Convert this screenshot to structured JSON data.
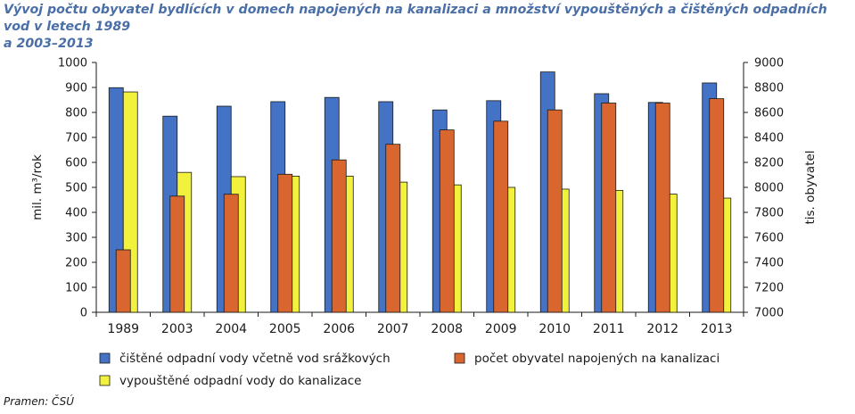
{
  "title_lines": [
    "Vývoj počtu obyvatel bydlících v domech napojených na kanalizaci a množství vypouštěných a čištěných odpadních vod v letech 1989",
    "a 2003–2013"
  ],
  "source": "Pramen: ČSÚ",
  "chart_data": {
    "type": "bar",
    "title": "Vývoj počtu obyvatel bydlících v domech napojených na kanalizaci a množství vypouštěných a čištěných odpadních vod v letech 1989 a 2003–2013",
    "categories": [
      "1989",
      "2003",
      "2004",
      "2005",
      "2006",
      "2007",
      "2008",
      "2009",
      "2010",
      "2011",
      "2012",
      "2013"
    ],
    "xlabel": "",
    "ylabel": "mil. m³/rok",
    "ylabel_right": "tis. obyvatel",
    "ylim": [
      0,
      1000
    ],
    "ylim_right": [
      7000,
      9000
    ],
    "yticks": [
      "0",
      "100",
      "200",
      "300",
      "400",
      "500",
      "600",
      "700",
      "800",
      "900",
      "1000"
    ],
    "yticks_right": [
      "7000",
      "7200",
      "7400",
      "7600",
      "7800",
      "8000",
      "8200",
      "8400",
      "8600",
      "8800",
      "9000"
    ],
    "grid": false,
    "legend_position": "bottom",
    "series": [
      {
        "name": "čištěné odpadní vody včetně vod srážkových",
        "axis": "left",
        "color": "#4472c4",
        "values": [
          899,
          785,
          825,
          843,
          860,
          843,
          810,
          847,
          962,
          875,
          840,
          918
        ]
      },
      {
        "name": "počet obyvatel napojených na kanalizaci",
        "axis": "right",
        "color": "#d9662e",
        "values": [
          7500,
          7930,
          7945,
          8105,
          8220,
          8345,
          8460,
          8530,
          8620,
          8675,
          8675,
          8710
        ]
      },
      {
        "name": "vypouštěné odpadní vody do kanalizace",
        "axis": "left",
        "color": "#f2f23c",
        "values": [
          882,
          560,
          543,
          545,
          545,
          521,
          510,
          500,
          493,
          488,
          473,
          457
        ]
      }
    ],
    "legend_order": [
      0,
      2,
      1
    ]
  }
}
